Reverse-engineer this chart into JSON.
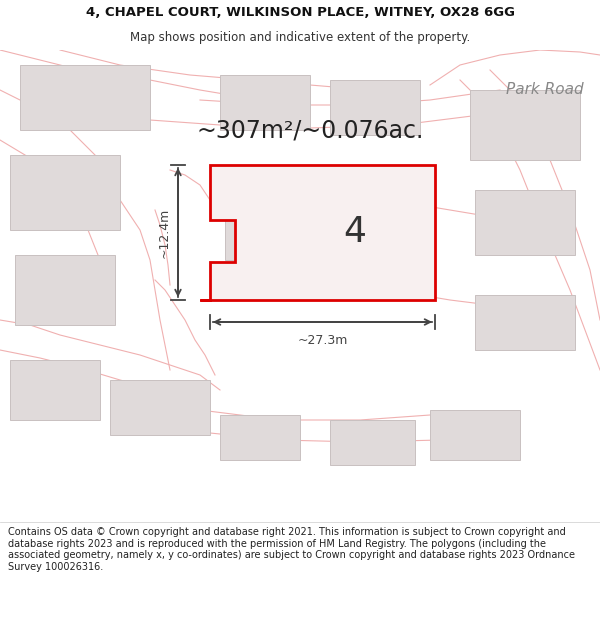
{
  "title_line1": "4, CHAPEL COURT, WILKINSON PLACE, WITNEY, OX28 6GG",
  "title_line2": "Map shows position and indicative extent of the property.",
  "area_text": "~307m²/~0.076ac.",
  "plot_number": "4",
  "dim_width": "~27.3m",
  "dim_height": "~12.4m",
  "park_road_label": "Park Road",
  "footer_text": "Contains OS data © Crown copyright and database right 2021. This information is subject to Crown copyright and database rights 2023 and is reproduced with the permission of HM Land Registry. The polygons (including the associated geometry, namely x, y co-ordinates) are subject to Crown copyright and database rights 2023 Ordnance Survey 100026316.",
  "bg_color": "#ffffff",
  "map_bg": "#ffffff",
  "plot_fill": "#f8f0f0",
  "plot_edge": "#dd0000",
  "road_color": "#f0b0b0",
  "building_fill": "#e0dada",
  "building_edge": "#c8c0c0",
  "dim_line_color": "#444444",
  "title_fontsize": 9.5,
  "subtitle_fontsize": 8.5,
  "area_fontsize": 17,
  "plot_num_fontsize": 26,
  "footer_fontsize": 7.0,
  "park_road_fontsize": 11
}
